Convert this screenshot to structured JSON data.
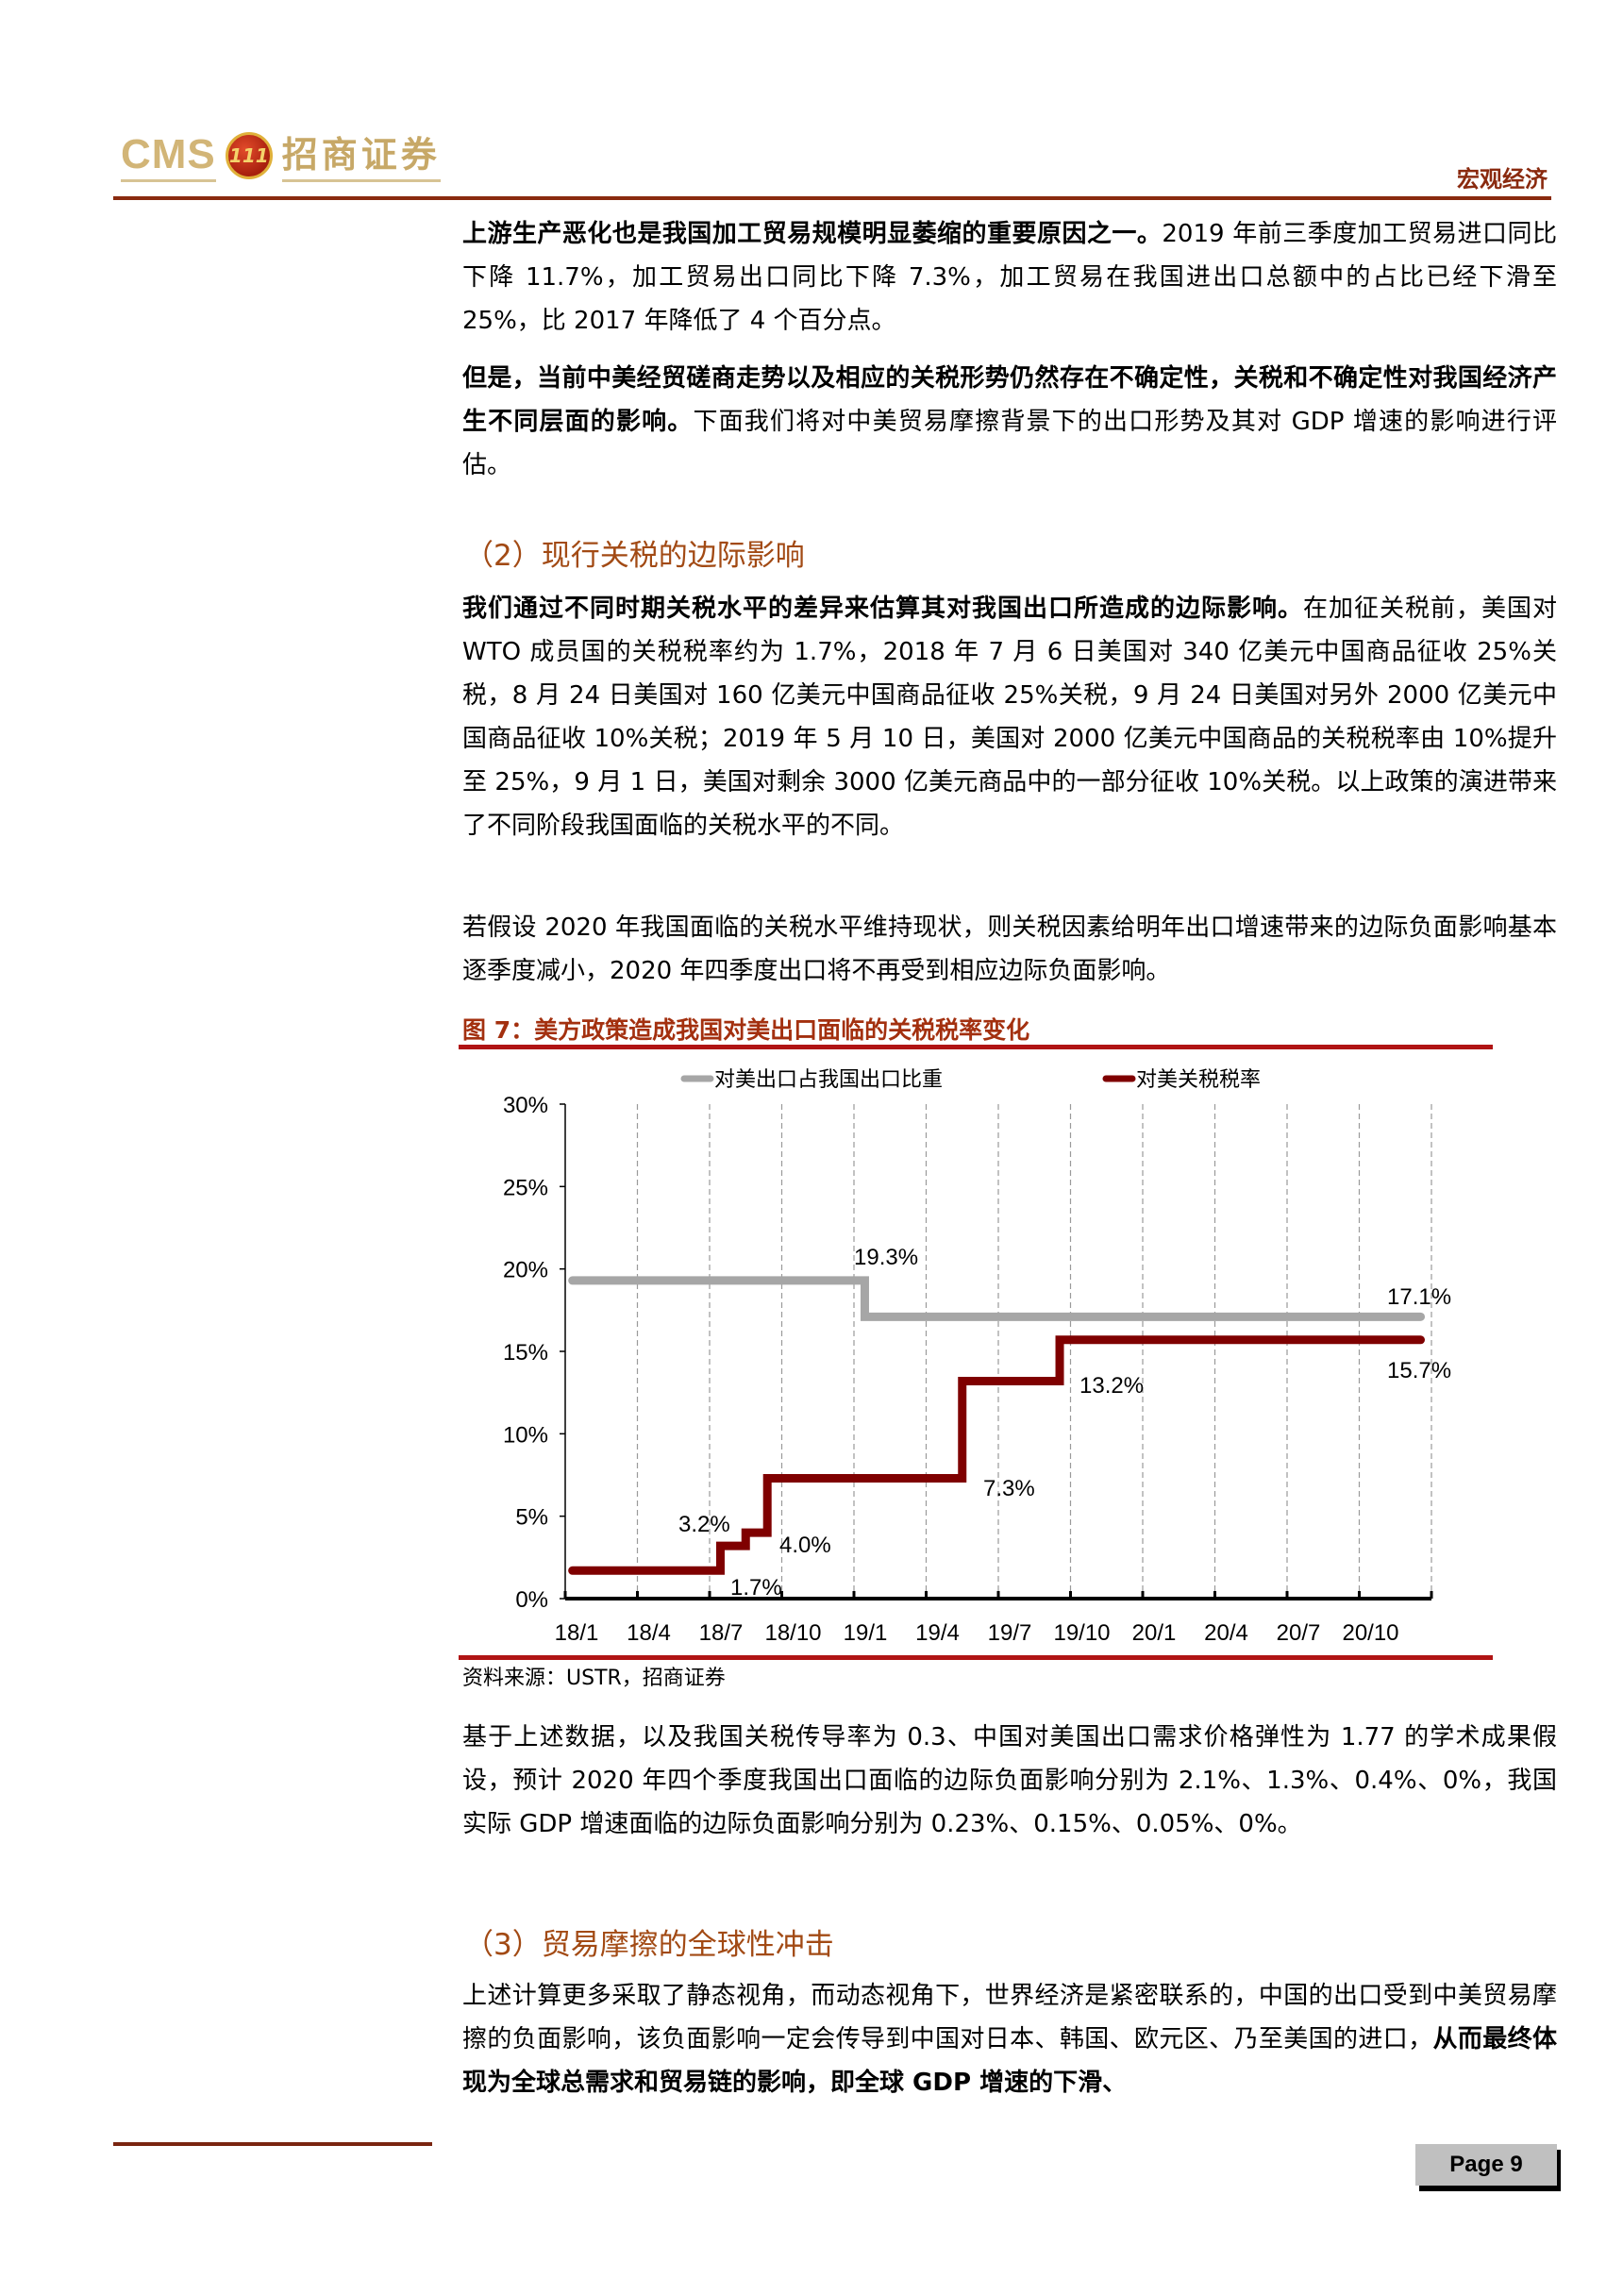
{
  "header": {
    "logo_latin": "CMS",
    "logo_badge": "111",
    "logo_chinese": "招商证券",
    "section": "宏观经济"
  },
  "paragraphs": {
    "p1_bold": "上游生产恶化也是我国加工贸易规模明显萎缩的重要原因之一。",
    "p1_rest": "2019 年前三季度加工贸易进口同比下降 11.7%，加工贸易出口同比下降 7.3%，加工贸易在我国进出口总额中的占比已经下滑至 25%，比 2017 年降低了 4 个百分点。",
    "p2_bold": "但是，当前中美经贸磋商走势以及相应的关税形势仍然存在不确定性，关税和不确定性对我国经济产生不同层面的影响。",
    "p2_rest": "下面我们将对中美贸易摩擦背景下的出口形势及其对 GDP 增速的影响进行评估。",
    "h2_section": "（2）现行关税的边际影响",
    "p3_bold": "我们通过不同时期关税水平的差异来估算其对我国出口所造成的边际影响。",
    "p3_rest": "在加征关税前，美国对 WTO 成员国的关税税率约为 1.7%，2018 年 7 月 6 日美国对 340 亿美元中国商品征收 25%关税，8 月 24 日美国对 160 亿美元中国商品征收 25%关税，9 月 24 日美国对另外 2000 亿美元中国商品征收 10%关税；2019 年 5 月 10 日，美国对 2000 亿美元中国商品的关税税率由 10%提升至 25%，9 月 1 日，美国对剩余 3000 亿美元商品中的一部分征收 10%关税。以上政策的演进带来了不同阶段我国面临的关税水平的不同。",
    "p4": "若假设 2020 年我国面临的关税水平维持现状，则关税因素给明年出口增速带来的边际负面影响基本逐季度减小，2020 年四季度出口将不再受到相应边际负面影响。",
    "p5": "基于上述数据，以及我国关税传导率为 0.3、中国对美国出口需求价格弹性为 1.77 的学术成果假设，预计 2020 年四个季度我国出口面临的边际负面影响分别为 2.1%、1.3%、0.4%、0%，我国实际 GDP 增速面临的边际负面影响分别为 0.23%、0.15%、0.05%、0%。",
    "h3_section": "（3）贸易摩擦的全球性冲击",
    "p6_rest": "上述计算更多采取了静态视角，而动态视角下，世界经济是紧密联系的，中国的出口受到中美贸易摩擦的负面影响，该负面影响一定会传导到中国对日本、韩国、欧元区、乃至美国的进口，",
    "p6_bold": "从而最终体现为全球总需求和贸易链的影响，即全球 GDP 增速的下滑、"
  },
  "figure": {
    "title": "图 7：美方政策造成我国对美出口面临的关税税率变化",
    "source": "资料来源：USTR，招商证券"
  },
  "chart_data": {
    "type": "line",
    "step": true,
    "title": "美方政策造成我国对美出口面临的关税税率变化",
    "xlabel": "",
    "ylabel": "",
    "ylim": [
      0,
      30
    ],
    "yticks": [
      "0%",
      "5%",
      "10%",
      "15%",
      "20%",
      "25%",
      "30%"
    ],
    "categories": [
      "18/1",
      "18/4",
      "18/7",
      "18/10",
      "19/1",
      "19/4",
      "19/7",
      "19/10",
      "20/1",
      "20/4",
      "20/7",
      "20/10"
    ],
    "grid": "vertical-dashed",
    "legend_position": "top",
    "series": [
      {
        "name": "对美出口占我国出口比重",
        "color": "#a6a6a6",
        "points": [
          [
            0.1,
            19.3
          ],
          [
            4.15,
            19.3
          ],
          [
            4.15,
            17.1
          ],
          [
            11.85,
            17.1
          ]
        ],
        "labels": [
          {
            "text": "19.3%",
            "x": 4.0,
            "y": 19.3
          },
          {
            "text": "17.1%",
            "x": 11.85,
            "y": 17.1
          }
        ]
      },
      {
        "name": "对美关税税率",
        "color": "#7f0000",
        "points": [
          [
            0.1,
            1.7
          ],
          [
            2.15,
            1.7
          ],
          [
            2.15,
            3.2
          ],
          [
            2.5,
            3.2
          ],
          [
            2.5,
            4.0
          ],
          [
            2.8,
            4.0
          ],
          [
            2.8,
            7.3
          ],
          [
            5.5,
            7.3
          ],
          [
            5.5,
            13.2
          ],
          [
            6.85,
            13.2
          ],
          [
            6.85,
            15.7
          ],
          [
            11.85,
            15.7
          ]
        ],
        "labels": [
          {
            "text": "1.7%",
            "x": 2.15,
            "y": 1.7
          },
          {
            "text": "3.2%",
            "x": 2.15,
            "y": 3.2
          },
          {
            "text": "4.0%",
            "x": 2.8,
            "y": 4.0
          },
          {
            "text": "7.3%",
            "x": 5.5,
            "y": 7.3
          },
          {
            "text": "13.2%",
            "x": 6.85,
            "y": 13.2
          },
          {
            "text": "15.7%",
            "x": 11.85,
            "y": 15.7
          }
        ]
      }
    ]
  },
  "footer": {
    "page_label": "Page  9"
  }
}
